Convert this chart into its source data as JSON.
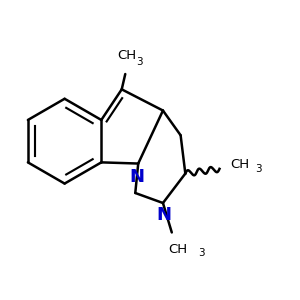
{
  "background_color": "#ffffff",
  "bond_color": "#000000",
  "N_color": "#0000cc",
  "line_width": 1.8,
  "figsize": [
    3.0,
    3.0
  ],
  "dpi": 100,
  "xlim": [
    -2.2,
    2.8
  ],
  "ylim": [
    -2.5,
    2.2
  ]
}
